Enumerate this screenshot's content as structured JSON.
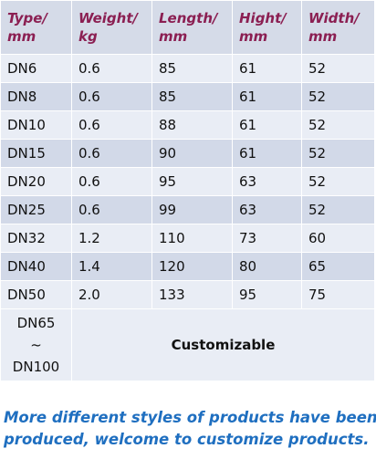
{
  "table": {
    "header": [
      [
        "Type/",
        "mm"
      ],
      [
        "Weight/",
        "kg"
      ],
      [
        "Length/",
        "mm"
      ],
      [
        "Hight/",
        "mm"
      ],
      [
        "Width/",
        "mm"
      ]
    ],
    "rows": [
      [
        "DN6",
        "0.6",
        "85",
        "61",
        "52"
      ],
      [
        "DN8",
        "0.6",
        "85",
        "61",
        "52"
      ],
      [
        "DN10",
        "0.6",
        "88",
        "61",
        "52"
      ],
      [
        "DN15",
        "0.6",
        "90",
        "61",
        "52"
      ],
      [
        "DN20",
        "0.6",
        "95",
        "63",
        "52"
      ],
      [
        "DN25",
        "0.6",
        "99",
        "63",
        "52"
      ],
      [
        "DN32",
        "1.2",
        "110",
        "73",
        "60"
      ],
      [
        "DN40",
        "1.4",
        "120",
        "80",
        "65"
      ],
      [
        "DN50",
        "2.0",
        "133",
        "95",
        "75"
      ]
    ],
    "last_row": {
      "type": [
        "DN65",
        "~",
        "DN100"
      ],
      "note": "Customizable"
    }
  },
  "footer": [
    "More different styles of products have been",
    "produced, welcome to customize products."
  ]
}
